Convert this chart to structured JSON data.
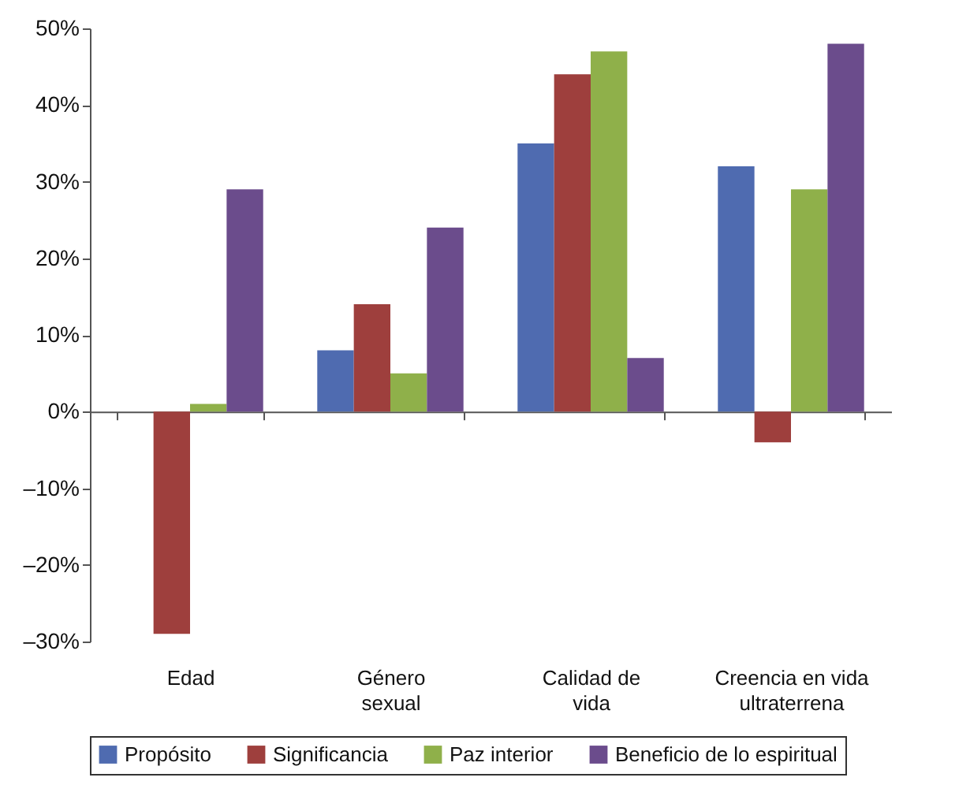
{
  "chart_data": {
    "type": "bar",
    "categories": [
      "Edad",
      "Género sexual",
      "Calidad de vida",
      "Creencia en vida ultraterrena"
    ],
    "series": [
      {
        "name": "Propósito",
        "color": "#4f6bb0",
        "values": [
          0,
          8,
          35,
          32
        ]
      },
      {
        "name": "Significancia",
        "color": "#9e3f3d",
        "values": [
          -29,
          14,
          44,
          -4
        ]
      },
      {
        "name": "Paz interior",
        "color": "#8fb04a",
        "values": [
          1,
          5,
          47,
          29
        ]
      },
      {
        "name": "Beneficio de lo espiritual",
        "color": "#6b4c8c",
        "values": [
          29,
          24,
          7,
          48
        ]
      }
    ],
    "ylim": [
      -30,
      50
    ],
    "yticks": [
      {
        "value": -30,
        "label": "–30%"
      },
      {
        "value": -20,
        "label": "–20%"
      },
      {
        "value": -10,
        "label": "–10%"
      },
      {
        "value": 0,
        "label": "0%"
      },
      {
        "value": 10,
        "label": "10%"
      },
      {
        "value": 20,
        "label": "20%"
      },
      {
        "value": 30,
        "label": "30%"
      },
      {
        "value": 40,
        "label": "40%"
      },
      {
        "value": 50,
        "label": "50%"
      }
    ],
    "legend": "bottom"
  }
}
